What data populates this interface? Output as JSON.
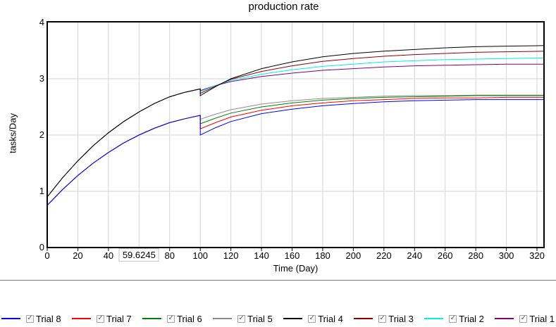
{
  "title": "production rate",
  "chart_data": {
    "type": "line",
    "title": "production rate",
    "xlabel": "Time (Day)",
    "ylabel": "tasks/Day",
    "xlim": [
      0,
      325
    ],
    "ylim": [
      0,
      4
    ],
    "grid": true,
    "legend_position": "bottom",
    "x_ticks": [
      {
        "value": 0,
        "label": "0"
      },
      {
        "value": 20,
        "label": "20"
      },
      {
        "value": 40,
        "label": "40"
      },
      {
        "value": 60,
        "label": "59.6245",
        "boxed": true
      },
      {
        "value": 80,
        "label": "80"
      },
      {
        "value": 100,
        "label": "100"
      },
      {
        "value": 120,
        "label": "120"
      },
      {
        "value": 140,
        "label": "140"
      },
      {
        "value": 160,
        "label": "160"
      },
      {
        "value": 180,
        "label": "180"
      },
      {
        "value": 200,
        "label": "200"
      },
      {
        "value": 220,
        "label": "220"
      },
      {
        "value": 240,
        "label": "240"
      },
      {
        "value": 260,
        "label": "260"
      },
      {
        "value": 280,
        "label": "280"
      },
      {
        "value": 300,
        "label": "300"
      },
      {
        "value": 320,
        "label": "320"
      }
    ],
    "y_ticks": [
      {
        "value": 0,
        "label": "0"
      },
      {
        "value": 1,
        "label": "1"
      },
      {
        "value": 2,
        "label": "2"
      },
      {
        "value": 3,
        "label": "3"
      },
      {
        "value": 4,
        "label": "4"
      }
    ],
    "series": [
      {
        "name": "Trial 1",
        "color": "#800080",
        "points": [
          [
            0,
            0.9
          ],
          [
            10,
            1.24
          ],
          [
            20,
            1.54
          ],
          [
            30,
            1.81
          ],
          [
            40,
            2.04
          ],
          [
            50,
            2.24
          ],
          [
            60,
            2.41
          ],
          [
            70,
            2.56
          ],
          [
            80,
            2.68
          ],
          [
            90,
            2.76
          ],
          [
            100,
            2.82
          ],
          [
            100,
            2.79
          ],
          [
            110,
            2.88
          ],
          [
            120,
            2.95
          ],
          [
            140,
            3.04
          ],
          [
            160,
            3.1
          ],
          [
            180,
            3.15
          ],
          [
            200,
            3.18
          ],
          [
            220,
            3.21
          ],
          [
            240,
            3.23
          ],
          [
            260,
            3.24
          ],
          [
            280,
            3.25
          ],
          [
            300,
            3.26
          ],
          [
            325,
            3.26
          ]
        ]
      },
      {
        "name": "Trial 2",
        "color": "#00eeee",
        "points": [
          [
            0,
            0.9
          ],
          [
            10,
            1.24
          ],
          [
            20,
            1.54
          ],
          [
            30,
            1.81
          ],
          [
            40,
            2.04
          ],
          [
            50,
            2.24
          ],
          [
            60,
            2.41
          ],
          [
            70,
            2.56
          ],
          [
            80,
            2.68
          ],
          [
            90,
            2.76
          ],
          [
            100,
            2.82
          ],
          [
            100,
            2.77
          ],
          [
            110,
            2.88
          ],
          [
            120,
            2.97
          ],
          [
            140,
            3.08
          ],
          [
            160,
            3.16
          ],
          [
            180,
            3.22
          ],
          [
            200,
            3.26
          ],
          [
            220,
            3.3
          ],
          [
            240,
            3.32
          ],
          [
            260,
            3.34
          ],
          [
            280,
            3.35
          ],
          [
            300,
            3.36
          ],
          [
            325,
            3.37
          ]
        ]
      },
      {
        "name": "Trial 3",
        "color": "#8b0000",
        "points": [
          [
            0,
            0.9
          ],
          [
            10,
            1.24
          ],
          [
            20,
            1.54
          ],
          [
            30,
            1.81
          ],
          [
            40,
            2.04
          ],
          [
            50,
            2.24
          ],
          [
            60,
            2.41
          ],
          [
            70,
            2.56
          ],
          [
            80,
            2.68
          ],
          [
            90,
            2.76
          ],
          [
            100,
            2.82
          ],
          [
            100,
            2.74
          ],
          [
            110,
            2.87
          ],
          [
            120,
            2.99
          ],
          [
            140,
            3.13
          ],
          [
            160,
            3.23
          ],
          [
            180,
            3.31
          ],
          [
            200,
            3.36
          ],
          [
            220,
            3.4
          ],
          [
            240,
            3.43
          ],
          [
            260,
            3.45
          ],
          [
            280,
            3.47
          ],
          [
            300,
            3.48
          ],
          [
            325,
            3.49
          ]
        ]
      },
      {
        "name": "Trial 4",
        "color": "#000000",
        "points": [
          [
            0,
            0.9
          ],
          [
            10,
            1.24
          ],
          [
            20,
            1.54
          ],
          [
            30,
            1.81
          ],
          [
            40,
            2.04
          ],
          [
            50,
            2.24
          ],
          [
            60,
            2.41
          ],
          [
            70,
            2.56
          ],
          [
            80,
            2.68
          ],
          [
            90,
            2.76
          ],
          [
            100,
            2.82
          ],
          [
            100,
            2.7
          ],
          [
            110,
            2.86
          ],
          [
            120,
            3.0
          ],
          [
            140,
            3.18
          ],
          [
            160,
            3.3
          ],
          [
            180,
            3.39
          ],
          [
            200,
            3.45
          ],
          [
            220,
            3.49
          ],
          [
            240,
            3.52
          ],
          [
            260,
            3.55
          ],
          [
            280,
            3.57
          ],
          [
            300,
            3.58
          ],
          [
            325,
            3.59
          ]
        ]
      },
      {
        "name": "Trial 5",
        "color": "#8c8c8c",
        "points": [
          [
            0,
            0.75
          ],
          [
            10,
            1.03
          ],
          [
            20,
            1.28
          ],
          [
            30,
            1.5
          ],
          [
            40,
            1.69
          ],
          [
            50,
            1.86
          ],
          [
            60,
            2.0
          ],
          [
            70,
            2.12
          ],
          [
            80,
            2.22
          ],
          [
            90,
            2.29
          ],
          [
            100,
            2.35
          ],
          [
            100,
            2.28
          ],
          [
            110,
            2.37
          ],
          [
            120,
            2.45
          ],
          [
            140,
            2.55
          ],
          [
            160,
            2.61
          ],
          [
            180,
            2.65
          ],
          [
            200,
            2.67
          ],
          [
            220,
            2.69
          ],
          [
            240,
            2.7
          ],
          [
            260,
            2.7
          ],
          [
            280,
            2.71
          ],
          [
            300,
            2.71
          ],
          [
            325,
            2.71
          ]
        ]
      },
      {
        "name": "Trial 6",
        "color": "#008000",
        "points": [
          [
            0,
            0.75
          ],
          [
            10,
            1.03
          ],
          [
            20,
            1.28
          ],
          [
            30,
            1.5
          ],
          [
            40,
            1.69
          ],
          [
            50,
            1.86
          ],
          [
            60,
            2.0
          ],
          [
            70,
            2.12
          ],
          [
            80,
            2.22
          ],
          [
            90,
            2.29
          ],
          [
            100,
            2.35
          ],
          [
            100,
            2.2
          ],
          [
            110,
            2.3
          ],
          [
            120,
            2.39
          ],
          [
            140,
            2.5
          ],
          [
            160,
            2.57
          ],
          [
            180,
            2.62
          ],
          [
            200,
            2.65
          ],
          [
            220,
            2.67
          ],
          [
            240,
            2.68
          ],
          [
            260,
            2.69
          ],
          [
            280,
            2.7
          ],
          [
            300,
            2.7
          ],
          [
            325,
            2.7
          ]
        ]
      },
      {
        "name": "Trial 7",
        "color": "#ff0000",
        "points": [
          [
            0,
            0.75
          ],
          [
            10,
            1.03
          ],
          [
            20,
            1.28
          ],
          [
            30,
            1.5
          ],
          [
            40,
            1.69
          ],
          [
            50,
            1.86
          ],
          [
            60,
            2.0
          ],
          [
            70,
            2.12
          ],
          [
            80,
            2.22
          ],
          [
            90,
            2.29
          ],
          [
            100,
            2.35
          ],
          [
            100,
            2.11
          ],
          [
            110,
            2.22
          ],
          [
            120,
            2.32
          ],
          [
            140,
            2.44
          ],
          [
            160,
            2.52
          ],
          [
            180,
            2.57
          ],
          [
            200,
            2.61
          ],
          [
            220,
            2.63
          ],
          [
            240,
            2.65
          ],
          [
            260,
            2.66
          ],
          [
            280,
            2.66
          ],
          [
            300,
            2.67
          ],
          [
            325,
            2.67
          ]
        ]
      },
      {
        "name": "Trial 8",
        "color": "#0000ff",
        "points": [
          [
            0,
            0.75
          ],
          [
            10,
            1.03
          ],
          [
            20,
            1.28
          ],
          [
            30,
            1.5
          ],
          [
            40,
            1.69
          ],
          [
            50,
            1.86
          ],
          [
            60,
            2.0
          ],
          [
            70,
            2.12
          ],
          [
            80,
            2.22
          ],
          [
            90,
            2.29
          ],
          [
            100,
            2.35
          ],
          [
            100,
            2.0
          ],
          [
            110,
            2.13
          ],
          [
            120,
            2.24
          ],
          [
            140,
            2.38
          ],
          [
            160,
            2.46
          ],
          [
            180,
            2.52
          ],
          [
            200,
            2.56
          ],
          [
            220,
            2.59
          ],
          [
            240,
            2.61
          ],
          [
            260,
            2.62
          ],
          [
            280,
            2.63
          ],
          [
            300,
            2.63
          ],
          [
            325,
            2.63
          ]
        ]
      }
    ]
  },
  "legend": {
    "items": [
      {
        "label": "Trial 8",
        "color": "#0000ff",
        "checked": true
      },
      {
        "label": "Trial 7",
        "color": "#ff0000",
        "checked": true
      },
      {
        "label": "Trial 6",
        "color": "#008000",
        "checked": true
      },
      {
        "label": "Trial 5",
        "color": "#8c8c8c",
        "checked": true
      },
      {
        "label": "Trial 4",
        "color": "#000000",
        "checked": true
      },
      {
        "label": "Trial 3",
        "color": "#8b0000",
        "checked": true
      },
      {
        "label": "Trial 2",
        "color": "#00eeee",
        "checked": true
      },
      {
        "label": "Trial 1",
        "color": "#800080",
        "checked": true
      }
    ],
    "check_glyph": "✓"
  },
  "colors": {
    "grid": "#d4d4d4",
    "frame": "#000000",
    "tick": "#000000",
    "separator": "#7d7d7d",
    "background": "#ffffff"
  }
}
